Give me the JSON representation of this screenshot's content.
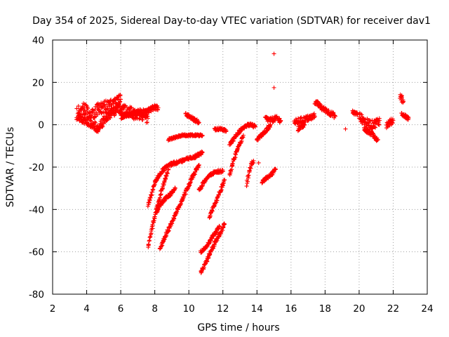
{
  "chart_data": {
    "type": "scatter",
    "title": "Day 354 of 2025, Sidereal Day-to-day VTEC variation (SDTVAR) for receiver dav1",
    "xlabel": "GPS time / hours",
    "ylabel": "SDTVAR / TECUs",
    "xlim": [
      2,
      24
    ],
    "ylim": [
      -80,
      40
    ],
    "x_ticks": [
      "2",
      "4",
      "6",
      "8",
      "10",
      "12",
      "14",
      "16",
      "18",
      "20",
      "22",
      "24"
    ],
    "y_ticks": [
      "40",
      "20",
      "0",
      "-20",
      "-40",
      "-60",
      "-80"
    ],
    "grid": true,
    "marker": "+",
    "color": "#ff0000",
    "segments": [
      {
        "x": [
          3.4,
          3.8,
          4.2,
          4.6,
          5.0,
          5.3,
          5.6,
          6.0
        ],
        "y": [
          5,
          8,
          4,
          7,
          9,
          8,
          10,
          12
        ],
        "jitter": 3
      },
      {
        "x": [
          3.5,
          4.0,
          4.4,
          4.7
        ],
        "y": [
          4,
          2,
          0,
          -2
        ],
        "jitter": 2
      },
      {
        "x": [
          4.6,
          5.0,
          5.4,
          5.8
        ],
        "y": [
          -3,
          2,
          5,
          7
        ],
        "jitter": 2
      },
      {
        "x": [
          5.8,
          6.3,
          6.8,
          7.2,
          7.6
        ],
        "y": [
          8,
          7,
          5,
          5,
          3
        ],
        "jitter": 2.5
      },
      {
        "x": [
          6.0,
          6.5,
          7.0,
          7.5,
          7.9,
          8.2
        ],
        "y": [
          4,
          5,
          6,
          6,
          8,
          8
        ],
        "jitter": 1.2
      },
      {
        "x": [
          7.6,
          7.8,
          8.0,
          8.4,
          8.8,
          9.2,
          9.6,
          10.0,
          10.4,
          10.8
        ],
        "y": [
          -38,
          -33,
          -27,
          -22,
          -19,
          -18,
          -17,
          -16,
          -15,
          -13
        ],
        "jitter": 0.8
      },
      {
        "x": [
          7.6,
          7.8,
          8.0,
          8.2,
          8.4,
          8.6,
          8.8
        ],
        "y": [
          -58,
          -50,
          -43,
          -37,
          -31,
          -26,
          -21
        ],
        "jitter": 0.8
      },
      {
        "x": [
          8.1,
          8.3,
          8.6,
          8.9,
          9.2
        ],
        "y": [
          -41,
          -38,
          -35,
          -33,
          -30
        ],
        "jitter": 0.7
      },
      {
        "x": [
          8.3,
          8.6,
          9.0,
          9.4,
          9.8,
          10.2,
          10.6
        ],
        "y": [
          -59,
          -53,
          -46,
          -39,
          -32,
          -25,
          -19
        ],
        "jitter": 0.8
      },
      {
        "x": [
          8.8,
          9.2,
          9.6,
          10.0,
          10.4,
          10.8
        ],
        "y": [
          -7,
          -6,
          -5,
          -5,
          -5,
          -5
        ],
        "jitter": 0.5
      },
      {
        "x": [
          9.8,
          10.2,
          10.6
        ],
        "y": [
          5,
          3,
          1
        ],
        "jitter": 0.8
      },
      {
        "x": [
          10.6,
          10.9,
          11.2,
          11.6,
          12.0
        ],
        "y": [
          -31,
          -27,
          -24,
          -22,
          -22
        ],
        "jitter": 0.7
      },
      {
        "x": [
          10.7,
          11.0,
          11.4,
          11.8
        ],
        "y": [
          -60,
          -58,
          -53,
          -48
        ],
        "jitter": 0.8
      },
      {
        "x": [
          10.7,
          11.0,
          11.4,
          11.8,
          12.1
        ],
        "y": [
          -70,
          -65,
          -58,
          -52,
          -47
        ],
        "jitter": 0.8
      },
      {
        "x": [
          11.2,
          11.5,
          11.8,
          12.1
        ],
        "y": [
          -44,
          -38,
          -32,
          -26
        ],
        "jitter": 0.8
      },
      {
        "x": [
          11.5,
          11.9,
          12.2
        ],
        "y": [
          -2,
          -2,
          -3
        ],
        "jitter": 0.6
      },
      {
        "x": [
          12.4,
          12.6,
          12.9,
          13.2
        ],
        "y": [
          -24,
          -17,
          -11,
          -5
        ],
        "jitter": 0.8
      },
      {
        "x": [
          12.4,
          12.8,
          13.2,
          13.6,
          13.9
        ],
        "y": [
          -9,
          -5,
          -1,
          0,
          -1
        ],
        "jitter": 0.8
      },
      {
        "x": [
          13.4,
          13.6,
          13.8
        ],
        "y": [
          -28,
          -20,
          -17
        ],
        "jitter": 1.2
      },
      {
        "x": [
          14.0,
          14.4,
          14.8
        ],
        "y": [
          -7,
          -4,
          0
        ],
        "jitter": 0.8
      },
      {
        "x": [
          14.3,
          14.6,
          14.9,
          15.1
        ],
        "y": [
          -27,
          -25,
          -23,
          -21
        ],
        "jitter": 0.7
      },
      {
        "x": [
          14.5,
          14.8,
          15.1,
          15.4
        ],
        "y": [
          3,
          2,
          3,
          2
        ],
        "jitter": 1.2
      },
      {
        "x": [
          16.2,
          16.6,
          17.0,
          17.4
        ],
        "y": [
          1,
          2,
          3,
          4
        ],
        "jitter": 1.5
      },
      {
        "x": [
          16.4,
          16.8
        ],
        "y": [
          -2,
          0
        ],
        "jitter": 1
      },
      {
        "x": [
          17.4,
          17.8,
          18.2,
          18.6
        ],
        "y": [
          11,
          8,
          6,
          4
        ],
        "jitter": 1.2
      },
      {
        "x": [
          19.6,
          19.9
        ],
        "y": [
          6,
          5
        ],
        "jitter": 0.8
      },
      {
        "x": [
          20.0,
          20.4,
          20.8,
          21.2
        ],
        "y": [
          4,
          1,
          0,
          2
        ],
        "jitter": 2
      },
      {
        "x": [
          20.3,
          20.7,
          21.1
        ],
        "y": [
          -2,
          -4,
          -7
        ],
        "jitter": 1.2
      },
      {
        "x": [
          21.6,
          22.0
        ],
        "y": [
          0,
          2
        ],
        "jitter": 1.5
      },
      {
        "x": [
          22.4,
          22.6
        ],
        "y": [
          14,
          11
        ],
        "jitter": 1.5
      },
      {
        "x": [
          22.5,
          22.9
        ],
        "y": [
          5,
          3
        ],
        "jitter": 0.8
      }
    ],
    "points": [
      {
        "x": 15.0,
        "y": 33.5
      },
      {
        "x": 15.0,
        "y": 17.5
      },
      {
        "x": 14.1,
        "y": -18
      },
      {
        "x": 19.2,
        "y": -2
      }
    ]
  }
}
